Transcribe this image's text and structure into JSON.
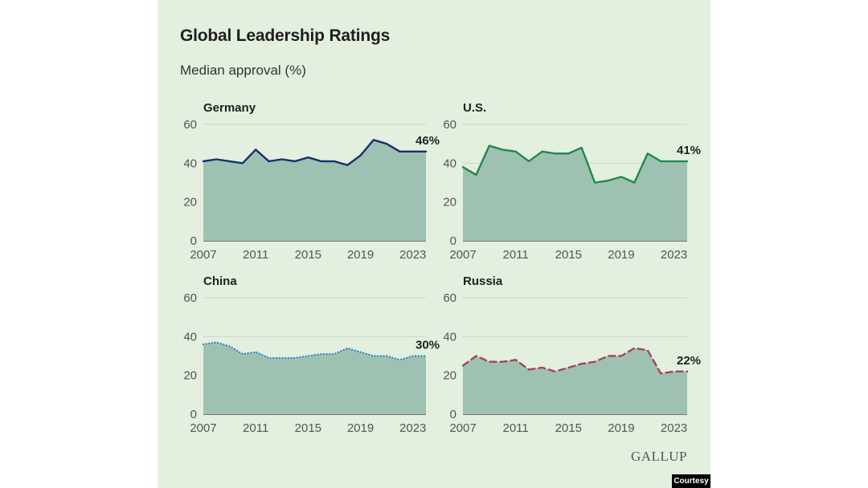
{
  "title": "Global Leadership Ratings",
  "subtitle": "Median approval (%)",
  "brand": "GALLUP",
  "credit": "Courtesy",
  "colors": {
    "background": "#e3efdf",
    "area": "#9fc1b2",
    "grid": "#c9d8c6",
    "text": "#1f1f1f"
  },
  "chart_data": [
    {
      "type": "area",
      "title": "Germany",
      "x": [
        2007,
        2008,
        2009,
        2010,
        2011,
        2012,
        2013,
        2014,
        2015,
        2016,
        2017,
        2018,
        2019,
        2020,
        2021,
        2022,
        2023,
        2024
      ],
      "values": [
        41,
        42,
        41,
        40,
        47,
        41,
        42,
        41,
        43,
        41,
        41,
        39,
        44,
        52,
        50,
        46,
        46,
        46
      ],
      "last_label": "46%",
      "line_color": "#1a2f6e",
      "line_style": "solid",
      "ylim": [
        0,
        60
      ],
      "yticks": [
        "0",
        "20",
        "40",
        "60"
      ],
      "xticks": [
        "2007",
        "2011",
        "2015",
        "2019",
        "2023"
      ]
    },
    {
      "type": "area",
      "title": "U.S.",
      "x": [
        2007,
        2008,
        2009,
        2010,
        2011,
        2012,
        2013,
        2014,
        2015,
        2016,
        2017,
        2018,
        2019,
        2020,
        2021,
        2022,
        2023,
        2024
      ],
      "values": [
        38,
        34,
        49,
        47,
        46,
        41,
        46,
        45,
        45,
        48,
        30,
        31,
        33,
        30,
        45,
        41,
        41,
        41
      ],
      "last_label": "41%",
      "line_color": "#1e8a4c",
      "line_style": "solid",
      "ylim": [
        0,
        60
      ],
      "yticks": [
        "0",
        "20",
        "40",
        "60"
      ],
      "xticks": [
        "2007",
        "2011",
        "2015",
        "2019",
        "2023"
      ]
    },
    {
      "type": "area",
      "title": "China",
      "x": [
        2007,
        2008,
        2009,
        2010,
        2011,
        2012,
        2013,
        2014,
        2015,
        2016,
        2017,
        2018,
        2019,
        2020,
        2021,
        2022,
        2023,
        2024
      ],
      "values": [
        36,
        37,
        35,
        31,
        32,
        29,
        29,
        29,
        30,
        31,
        31,
        34,
        32,
        30,
        30,
        28,
        30,
        30
      ],
      "last_label": "30%",
      "line_color": "#2e7fc2",
      "line_style": "dotted",
      "ylim": [
        0,
        60
      ],
      "yticks": [
        "0",
        "20",
        "40",
        "60"
      ],
      "xticks": [
        "2007",
        "2011",
        "2015",
        "2019",
        "2023"
      ]
    },
    {
      "type": "area",
      "title": "Russia",
      "x": [
        2007,
        2008,
        2009,
        2010,
        2011,
        2012,
        2013,
        2014,
        2015,
        2016,
        2017,
        2018,
        2019,
        2020,
        2021,
        2022,
        2023,
        2024
      ],
      "values": [
        25,
        30,
        27,
        27,
        28,
        23,
        24,
        22,
        24,
        26,
        27,
        30,
        30,
        34,
        33,
        21,
        22,
        22
      ],
      "last_label": "22%",
      "line_color": "#a0465a",
      "line_style": "dashed",
      "ylim": [
        0,
        60
      ],
      "yticks": [
        "0",
        "20",
        "40",
        "60"
      ],
      "xticks": [
        "2007",
        "2011",
        "2015",
        "2019",
        "2023"
      ]
    }
  ]
}
